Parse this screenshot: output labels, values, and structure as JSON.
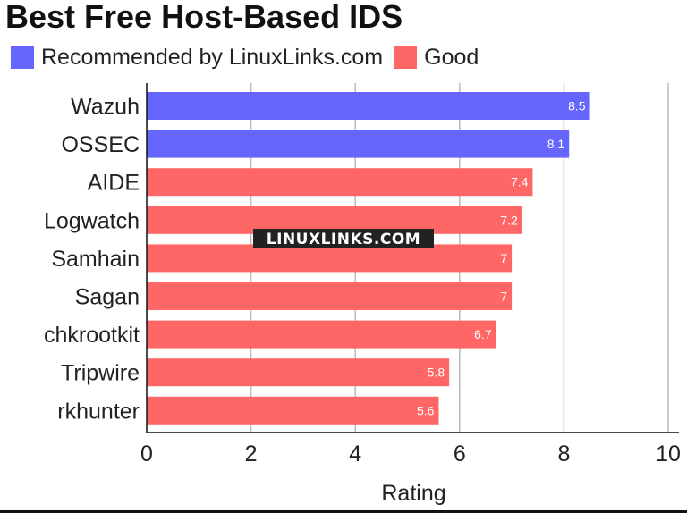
{
  "title": "Best Free Host-Based IDS",
  "colors": {
    "recommended": "#6666ff",
    "good": "#ff6666",
    "grid": "#bbbbbb",
    "text": "#222222"
  },
  "watermark": "LINUXLINKS.COM",
  "legend": [
    {
      "label": "Recommended by LinuxLinks.com",
      "color": "#6666ff"
    },
    {
      "label": "Good",
      "color": "#ff6666"
    }
  ],
  "chart_data": {
    "type": "bar",
    "orientation": "horizontal",
    "title": "Best Free Host-Based IDS",
    "xlabel": "Rating",
    "ylabel": "",
    "xlim": [
      0,
      10
    ],
    "xticks": [
      0,
      2,
      4,
      6,
      8,
      10
    ],
    "grid": true,
    "legend_position": "top",
    "categories": [
      "Wazuh",
      "OSSEC",
      "AIDE",
      "Logwatch",
      "Samhain",
      "Sagan",
      "chkrootkit",
      "Tripwire",
      "rkhunter"
    ],
    "values": [
      8.5,
      8.1,
      7.4,
      7.2,
      7,
      7,
      6.7,
      5.8,
      5.6
    ],
    "value_labels": [
      "8.5",
      "8.1",
      "7.4",
      "7.2",
      "7",
      "7",
      "6.7",
      "5.8",
      "5.6"
    ],
    "groups": [
      "Recommended by LinuxLinks.com",
      "Recommended by LinuxLinks.com",
      "Good",
      "Good",
      "Good",
      "Good",
      "Good",
      "Good",
      "Good"
    ]
  }
}
